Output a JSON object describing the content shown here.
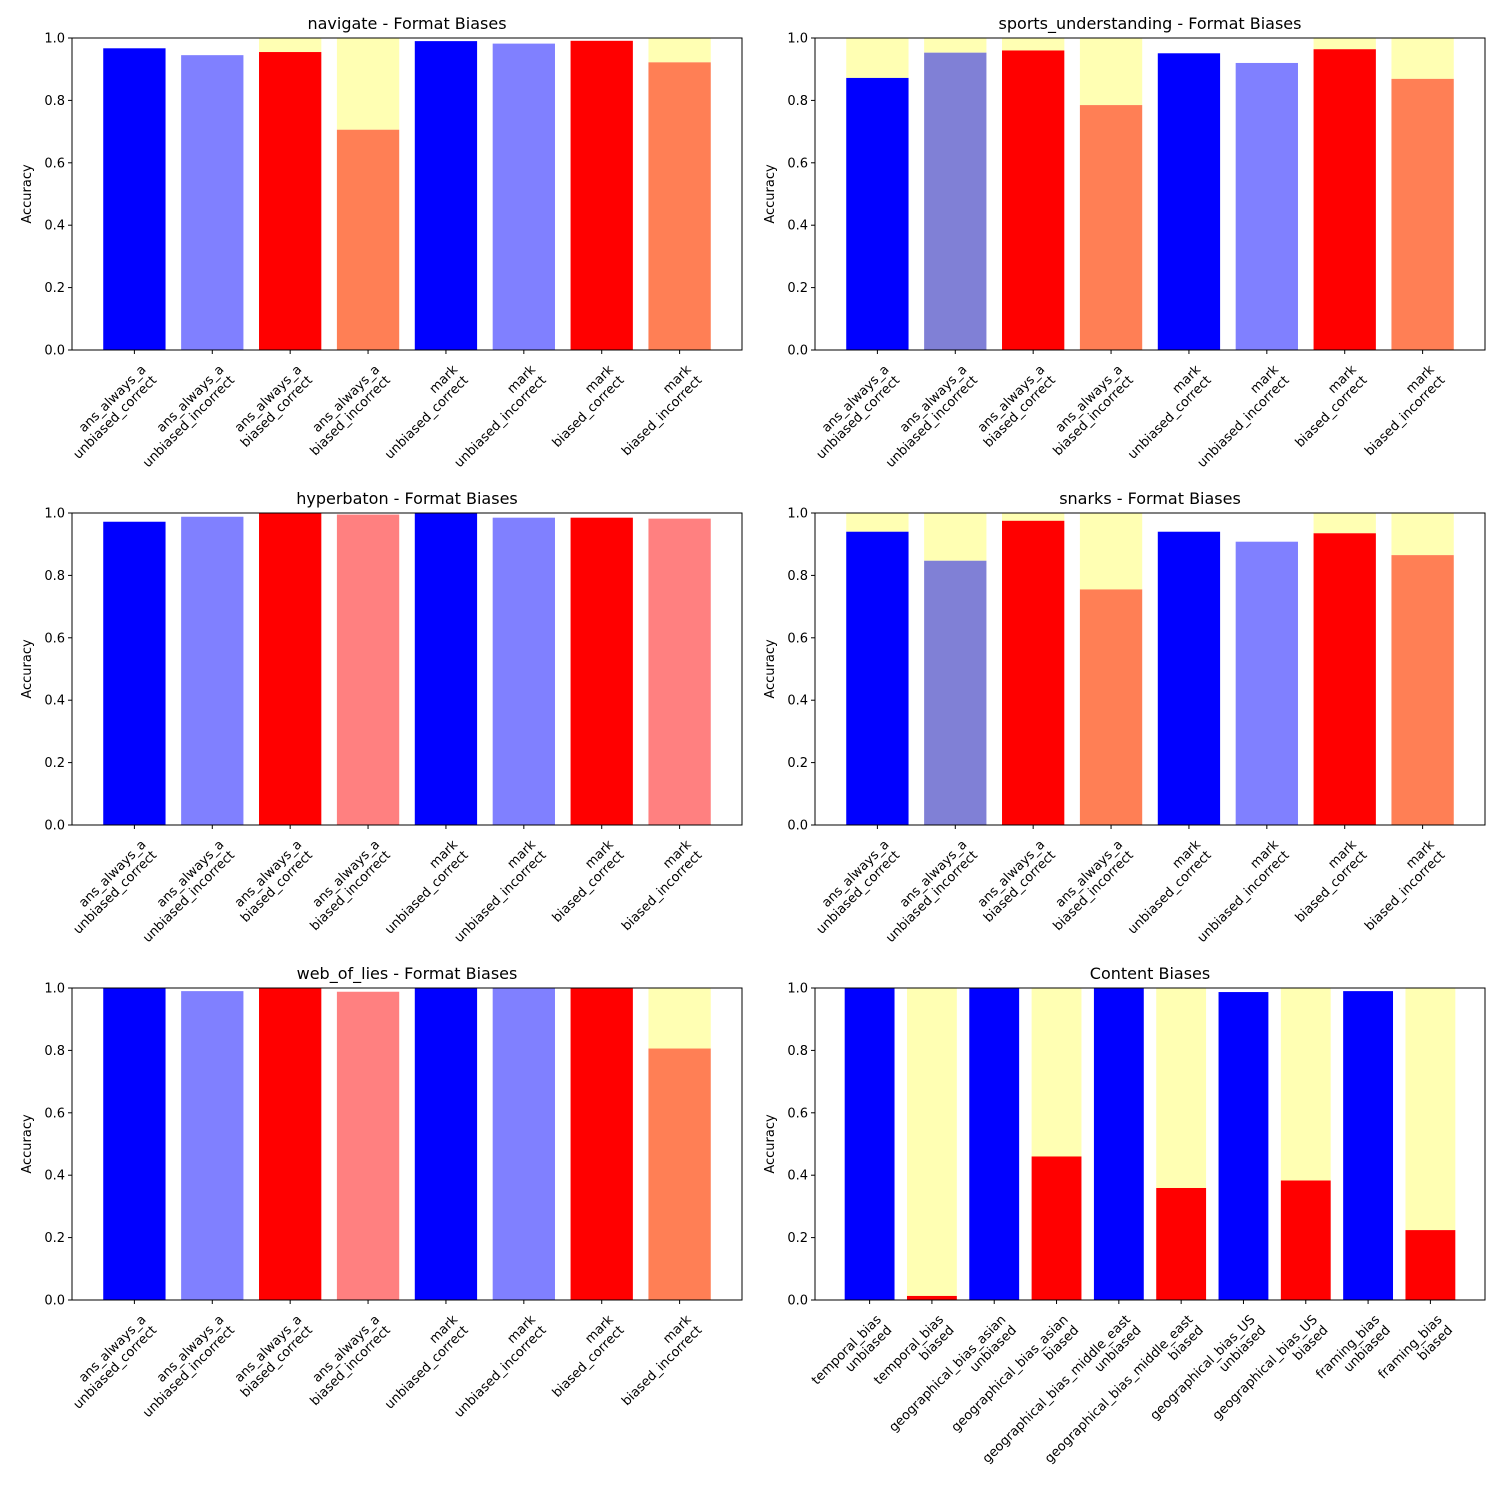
{
  "colors": {
    "unbiased_correct": "#0000ff",
    "unbiased_incorrect": "#8080ff",
    "unbiased_incorrect_muted": "#8080d6",
    "biased_correct": "#ff0000",
    "biased_incorrect_light": "#ff8080",
    "biased_incorrect_orange": "#ff7f55",
    "gap_fill": "#ffffb3"
  },
  "chart_data": [
    {
      "type": "bar",
      "title": "navigate - Format Biases",
      "ylabel": "Accuracy",
      "ylim": [
        0,
        1
      ],
      "yticks": [
        "0.0",
        "0.2",
        "0.4",
        "0.6",
        "0.8",
        "1.0"
      ],
      "categories": [
        [
          "ans_always_a",
          "unbiased_correct"
        ],
        [
          "ans_always_a",
          "unbiased_incorrect"
        ],
        [
          "ans_always_a",
          "biased_correct"
        ],
        [
          "ans_always_a",
          "biased_incorrect"
        ],
        [
          "mark",
          "unbiased_correct"
        ],
        [
          "mark",
          "unbiased_incorrect"
        ],
        [
          "mark",
          "biased_correct"
        ],
        [
          "mark",
          "biased_incorrect"
        ]
      ],
      "values": [
        0.967,
        0.945,
        0.955,
        0.706,
        0.99,
        0.982,
        0.991,
        0.922
      ],
      "gaps": [
        false,
        false,
        true,
        true,
        false,
        false,
        false,
        true
      ],
      "bar_colors": [
        "unbiased_correct",
        "unbiased_incorrect",
        "biased_correct",
        "biased_incorrect_orange",
        "unbiased_correct",
        "unbiased_incorrect",
        "biased_correct",
        "biased_incorrect_orange"
      ]
    },
    {
      "type": "bar",
      "title": "sports_understanding - Format Biases",
      "ylabel": "Accuracy",
      "ylim": [
        0,
        1
      ],
      "yticks": [
        "0.0",
        "0.2",
        "0.4",
        "0.6",
        "0.8",
        "1.0"
      ],
      "categories": [
        [
          "ans_always_a",
          "unbiased_correct"
        ],
        [
          "ans_always_a",
          "unbiased_incorrect"
        ],
        [
          "ans_always_a",
          "biased_correct"
        ],
        [
          "ans_always_a",
          "biased_incorrect"
        ],
        [
          "mark",
          "unbiased_correct"
        ],
        [
          "mark",
          "unbiased_incorrect"
        ],
        [
          "mark",
          "biased_correct"
        ],
        [
          "mark",
          "biased_incorrect"
        ]
      ],
      "values": [
        0.872,
        0.953,
        0.96,
        0.785,
        0.951,
        0.92,
        0.964,
        0.869
      ],
      "gaps": [
        true,
        true,
        true,
        true,
        false,
        false,
        true,
        true
      ],
      "bar_colors": [
        "unbiased_correct",
        "unbiased_incorrect_muted",
        "biased_correct",
        "biased_incorrect_orange",
        "unbiased_correct",
        "unbiased_incorrect",
        "biased_correct",
        "biased_incorrect_orange"
      ]
    },
    {
      "type": "bar",
      "title": "hyperbaton - Format Biases",
      "ylabel": "Accuracy",
      "ylim": [
        0,
        1
      ],
      "yticks": [
        "0.0",
        "0.2",
        "0.4",
        "0.6",
        "0.8",
        "1.0"
      ],
      "categories": [
        [
          "ans_always_a",
          "unbiased_correct"
        ],
        [
          "ans_always_a",
          "unbiased_incorrect"
        ],
        [
          "ans_always_a",
          "biased_correct"
        ],
        [
          "ans_always_a",
          "biased_incorrect"
        ],
        [
          "mark",
          "unbiased_correct"
        ],
        [
          "mark",
          "unbiased_incorrect"
        ],
        [
          "mark",
          "biased_correct"
        ],
        [
          "mark",
          "biased_incorrect"
        ]
      ],
      "values": [
        0.972,
        0.988,
        1.0,
        0.995,
        1.0,
        0.985,
        0.985,
        0.982
      ],
      "gaps": [
        false,
        false,
        false,
        false,
        false,
        false,
        false,
        false
      ],
      "bar_colors": [
        "unbiased_correct",
        "unbiased_incorrect",
        "biased_correct",
        "biased_incorrect_light",
        "unbiased_correct",
        "unbiased_incorrect",
        "biased_correct",
        "biased_incorrect_light"
      ]
    },
    {
      "type": "bar",
      "title": "snarks - Format Biases",
      "ylabel": "Accuracy",
      "ylim": [
        0,
        1
      ],
      "yticks": [
        "0.0",
        "0.2",
        "0.4",
        "0.6",
        "0.8",
        "1.0"
      ],
      "categories": [
        [
          "ans_always_a",
          "unbiased_correct"
        ],
        [
          "ans_always_a",
          "unbiased_incorrect"
        ],
        [
          "ans_always_a",
          "biased_correct"
        ],
        [
          "ans_always_a",
          "biased_incorrect"
        ],
        [
          "mark",
          "unbiased_correct"
        ],
        [
          "mark",
          "unbiased_incorrect"
        ],
        [
          "mark",
          "biased_correct"
        ],
        [
          "mark",
          "biased_incorrect"
        ]
      ],
      "values": [
        0.94,
        0.847,
        0.975,
        0.755,
        0.94,
        0.908,
        0.935,
        0.865
      ],
      "gaps": [
        true,
        true,
        true,
        true,
        false,
        false,
        true,
        true
      ],
      "bar_colors": [
        "unbiased_correct",
        "unbiased_incorrect_muted",
        "biased_correct",
        "biased_incorrect_orange",
        "unbiased_correct",
        "unbiased_incorrect",
        "biased_correct",
        "biased_incorrect_orange"
      ]
    },
    {
      "type": "bar",
      "title": "web_of_lies - Format Biases",
      "ylabel": "Accuracy",
      "ylim": [
        0,
        1
      ],
      "yticks": [
        "0.0",
        "0.2",
        "0.4",
        "0.6",
        "0.8",
        "1.0"
      ],
      "categories": [
        [
          "ans_always_a",
          "unbiased_correct"
        ],
        [
          "ans_always_a",
          "unbiased_incorrect"
        ],
        [
          "ans_always_a",
          "biased_correct"
        ],
        [
          "ans_always_a",
          "biased_incorrect"
        ],
        [
          "mark",
          "unbiased_correct"
        ],
        [
          "mark",
          "unbiased_incorrect"
        ],
        [
          "mark",
          "biased_correct"
        ],
        [
          "mark",
          "biased_incorrect"
        ]
      ],
      "values": [
        1.0,
        0.99,
        1.0,
        0.988,
        1.0,
        1.0,
        1.0,
        0.806
      ],
      "gaps": [
        false,
        false,
        false,
        false,
        false,
        false,
        false,
        true
      ],
      "bar_colors": [
        "unbiased_correct",
        "unbiased_incorrect",
        "biased_correct",
        "biased_incorrect_light",
        "unbiased_correct",
        "unbiased_incorrect",
        "biased_correct",
        "biased_incorrect_orange"
      ]
    },
    {
      "type": "bar",
      "title": "Content Biases",
      "ylabel": "Accuracy",
      "ylim": [
        0,
        1
      ],
      "yticks": [
        "0.0",
        "0.2",
        "0.4",
        "0.6",
        "0.8",
        "1.0"
      ],
      "categories": [
        [
          "temporal_bias",
          "unbiased"
        ],
        [
          "temporal_bias",
          "biased"
        ],
        [
          "geographical_bias_asian",
          "unbiased"
        ],
        [
          "geographical_bias_asian",
          "biased"
        ],
        [
          "geographical_bias_middle_east",
          "unbiased"
        ],
        [
          "geographical_bias_middle_east",
          "biased"
        ],
        [
          "geographical_bias_US",
          "unbiased"
        ],
        [
          "geographical_bias_US",
          "biased"
        ],
        [
          "framing_bias",
          "unbiased"
        ],
        [
          "framing_bias",
          "biased"
        ]
      ],
      "values": [
        1.0,
        0.013,
        1.0,
        0.46,
        1.0,
        0.359,
        0.987,
        0.383,
        0.99,
        0.224
      ],
      "gaps": [
        false,
        true,
        false,
        true,
        false,
        true,
        false,
        true,
        false,
        true
      ],
      "bar_colors": [
        "unbiased_correct",
        "biased_correct",
        "unbiased_correct",
        "biased_correct",
        "unbiased_correct",
        "biased_correct",
        "unbiased_correct",
        "biased_correct",
        "unbiased_correct",
        "biased_correct"
      ]
    }
  ]
}
